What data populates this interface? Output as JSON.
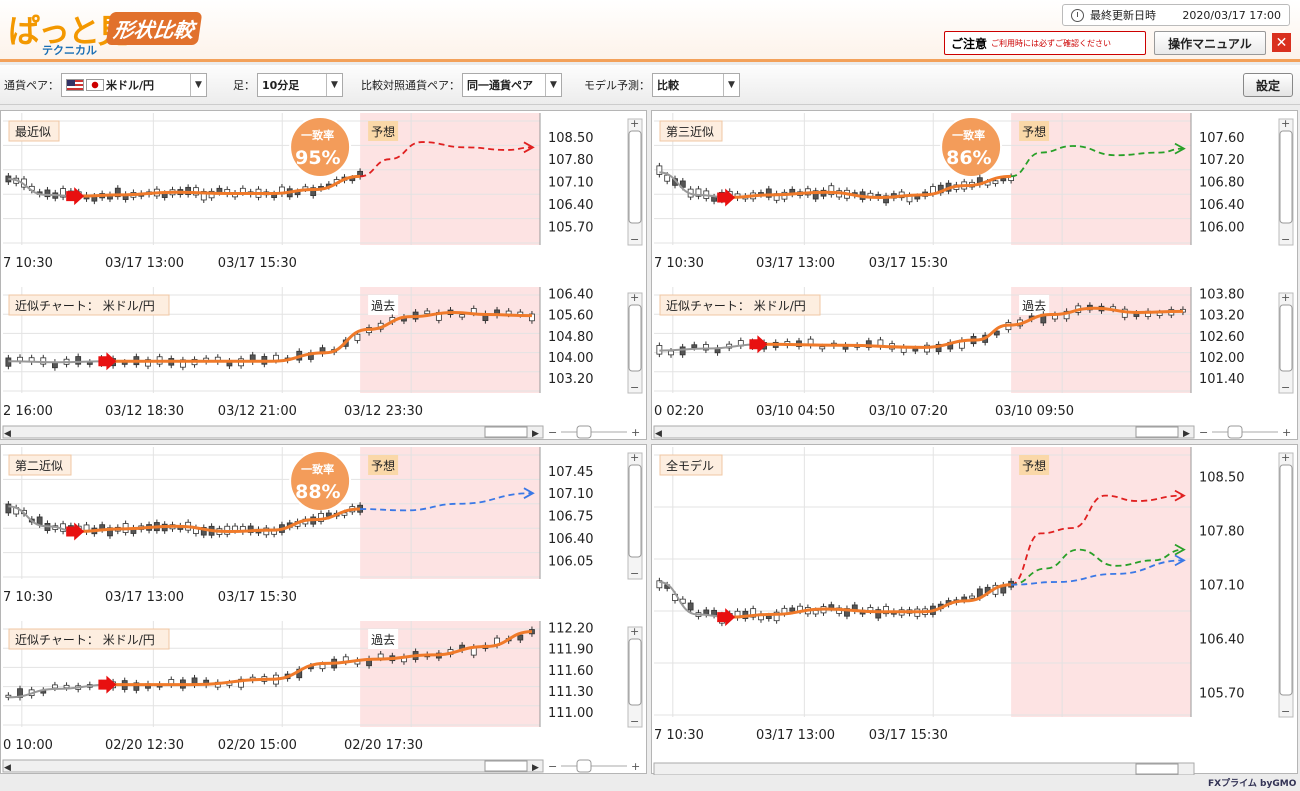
{
  "header": {
    "logo_main": "ぱっと見",
    "logo_sub": "テクニカル",
    "logo_badge": "形状比較",
    "updated_label": "最終更新日時",
    "updated_value": "2020/03/17 17:00",
    "notice_title": "ご注意",
    "notice_text": "ご利用時には必ずご確認ください",
    "manual_label": "操作マニュアル",
    "close_label": "✕"
  },
  "toolbar": {
    "pair_label": "通貨ペア：",
    "pair_value": "米ドル/円",
    "timeframe_label": "足：",
    "timeframe_value": "10分足",
    "compare_label": "比較対照通貨ペア：",
    "compare_value": "同一通貨ペア",
    "model_label": "モデル予測：",
    "model_value": "比較",
    "settings_label": "設定"
  },
  "footer": {
    "brand": "FXプライム byGMO"
  },
  "colors": {
    "accent": "#f3a15a",
    "forecast_bg": "#fde3e3",
    "main_line": "#f07a2a",
    "red": "#e02020",
    "green": "#28a028",
    "blue": "#3a78e6",
    "badge": "#f39c5a",
    "title_bg": "#fdeee0",
    "predict_bg": "#fad8a8"
  },
  "panels": [
    {
      "id": "p1",
      "title": "最近似",
      "tag": "予想",
      "match_label": "一致率",
      "match_value": "95%",
      "y_labels": [
        "108.50",
        "107.80",
        "107.10",
        "106.40",
        "105.70"
      ],
      "x_labels": [
        "7 10:30",
        "03/17 13:00",
        "03/17 15:30"
      ],
      "forecast_color": "red"
    },
    {
      "id": "p2",
      "title": "近似チャート：  米ドル/円",
      "tag": "過去",
      "y_labels": [
        "106.40",
        "105.60",
        "104.80",
        "104.00",
        "103.20"
      ],
      "x_labels": [
        "2 16:00",
        "03/12 18:30",
        "03/12 21:00",
        "03/12 23:30"
      ],
      "forecast_color": "red"
    },
    {
      "id": "p3",
      "title": "第三近似",
      "tag": "予想",
      "match_label": "一致率",
      "match_value": "86%",
      "y_labels": [
        "107.60",
        "107.20",
        "106.80",
        "106.40",
        "106.00"
      ],
      "x_labels": [
        "7 10:30",
        "03/17 13:00",
        "03/17 15:30"
      ],
      "forecast_color": "green"
    },
    {
      "id": "p4",
      "title": "近似チャート：  米ドル/円",
      "tag": "過去",
      "y_labels": [
        "103.80",
        "103.20",
        "102.60",
        "102.00",
        "101.40"
      ],
      "x_labels": [
        "0 02:20",
        "03/10 04:50",
        "03/10 07:20",
        "03/10 09:50"
      ],
      "forecast_color": "green"
    },
    {
      "id": "p5",
      "title": "第二近似",
      "tag": "予想",
      "match_label": "一致率",
      "match_value": "88%",
      "y_labels": [
        "107.45",
        "107.10",
        "106.75",
        "106.40",
        "106.05"
      ],
      "x_labels": [
        "7 10:30",
        "03/17 13:00",
        "03/17 15:30"
      ],
      "forecast_color": "blue"
    },
    {
      "id": "p6",
      "title": "近似チャート：  米ドル/円",
      "tag": "過去",
      "y_labels": [
        "112.20",
        "111.90",
        "111.60",
        "111.30",
        "111.00"
      ],
      "x_labels": [
        "0 10:00",
        "02/20 12:30",
        "02/20 15:00",
        "02/20 17:30"
      ],
      "forecast_color": "blue"
    },
    {
      "id": "p7",
      "title": "全モデル",
      "tag": "予想",
      "y_labels": [
        "108.50",
        "107.80",
        "107.10",
        "106.40",
        "105.70"
      ],
      "x_labels": [
        "7 10:30",
        "03/17 13:00",
        "03/17 15:30"
      ],
      "forecast_color": "all"
    }
  ]
}
